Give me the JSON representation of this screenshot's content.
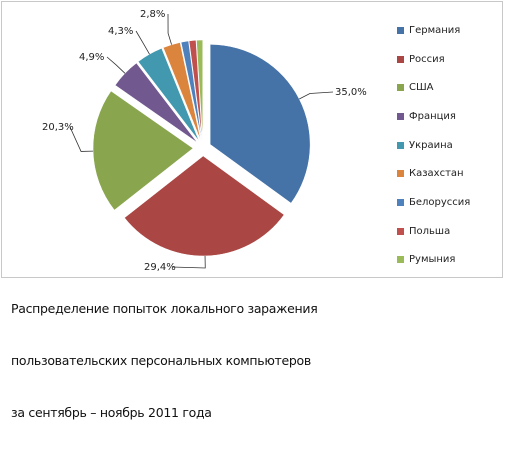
{
  "chart_data": {
    "type": "pie",
    "title": "",
    "legend_position": "right",
    "categories": [
      "Германия",
      "Россия",
      "США",
      "Франция",
      "Украина",
      "Казахстан",
      "Белоруссия",
      "Польша",
      "Румыния"
    ],
    "values": [
      35.0,
      29.4,
      20.3,
      4.9,
      4.3,
      2.8,
      1.2,
      1.1,
      1.0
    ],
    "data_labels": [
      "35,0%",
      "29,4%",
      "20,3%",
      "4,9%",
      "4,3%",
      "2,8%",
      "",
      "",
      ""
    ],
    "colors": [
      "#4572a7",
      "#aa4643",
      "#89a54e",
      "#71588f",
      "#4198af",
      "#db843d",
      "#4f81bd",
      "#c0504d",
      "#9bbb59"
    ]
  },
  "caption": {
    "lines": [
      "Распределение попыток локального заражения",
      "пользовательских персональных компьютеров",
      "за сентябрь – ноябрь 2011 года"
    ]
  }
}
